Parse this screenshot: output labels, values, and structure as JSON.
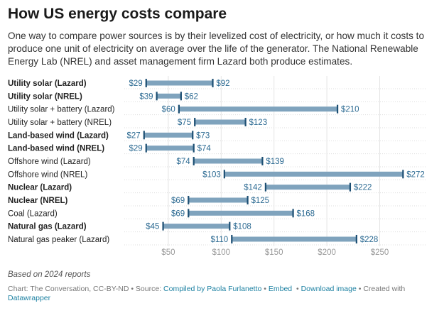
{
  "chart_data": {
    "type": "range",
    "title": "How US energy costs compare",
    "description": "One way to compare power sources is by their levelized cost of electricity, or how much it costs to produce one unit of electricity on average over the life of the generator. The National Renewable Energy Lab (NREL) and asset management firm Lazard both produce estimates.",
    "categories": [
      "Utility solar (Lazard)",
      "Utility solar (NREL)",
      "Utility solar + battery (Lazard)",
      "Utility solar + battery (NREL)",
      "Land-based wind (Lazard)",
      "Land-based wind (NREL)",
      "Offshore wind (Lazard)",
      "Offshore wind (NREL)",
      "Nuclear (Lazard)",
      "Nuclear (NREL)",
      "Coal (Lazard)",
      "Natural gas (Lazard)",
      "Natural gas peaker (Lazard)"
    ],
    "bold": [
      true,
      true,
      false,
      false,
      true,
      true,
      false,
      false,
      true,
      true,
      false,
      true,
      false
    ],
    "low": [
      29,
      39,
      60,
      75,
      27,
      29,
      74,
      103,
      142,
      69,
      69,
      45,
      110
    ],
    "high": [
      92,
      62,
      210,
      123,
      73,
      74,
      139,
      272,
      222,
      125,
      168,
      108,
      228
    ],
    "xticks": [
      50,
      100,
      150,
      200,
      250
    ],
    "tick_labels": [
      "$50",
      "$100",
      "$150",
      "$200",
      "$250"
    ],
    "xlim": [
      0,
      290
    ],
    "unit_prefix": "$",
    "colors": {
      "bar": "#7fa3bd",
      "cap": "#1d4f73",
      "label": "#2c6a92"
    }
  },
  "footer": {
    "note": "Based on 2024 reports",
    "credit": "Chart: The Conversation, CC-BY-ND",
    "source_label": "Source:",
    "source_link": "Compiled by Paola Furlanetto",
    "embed": "Embed",
    "download": "Download image",
    "created": "Created with",
    "datawrapper": "Datawrapper"
  }
}
